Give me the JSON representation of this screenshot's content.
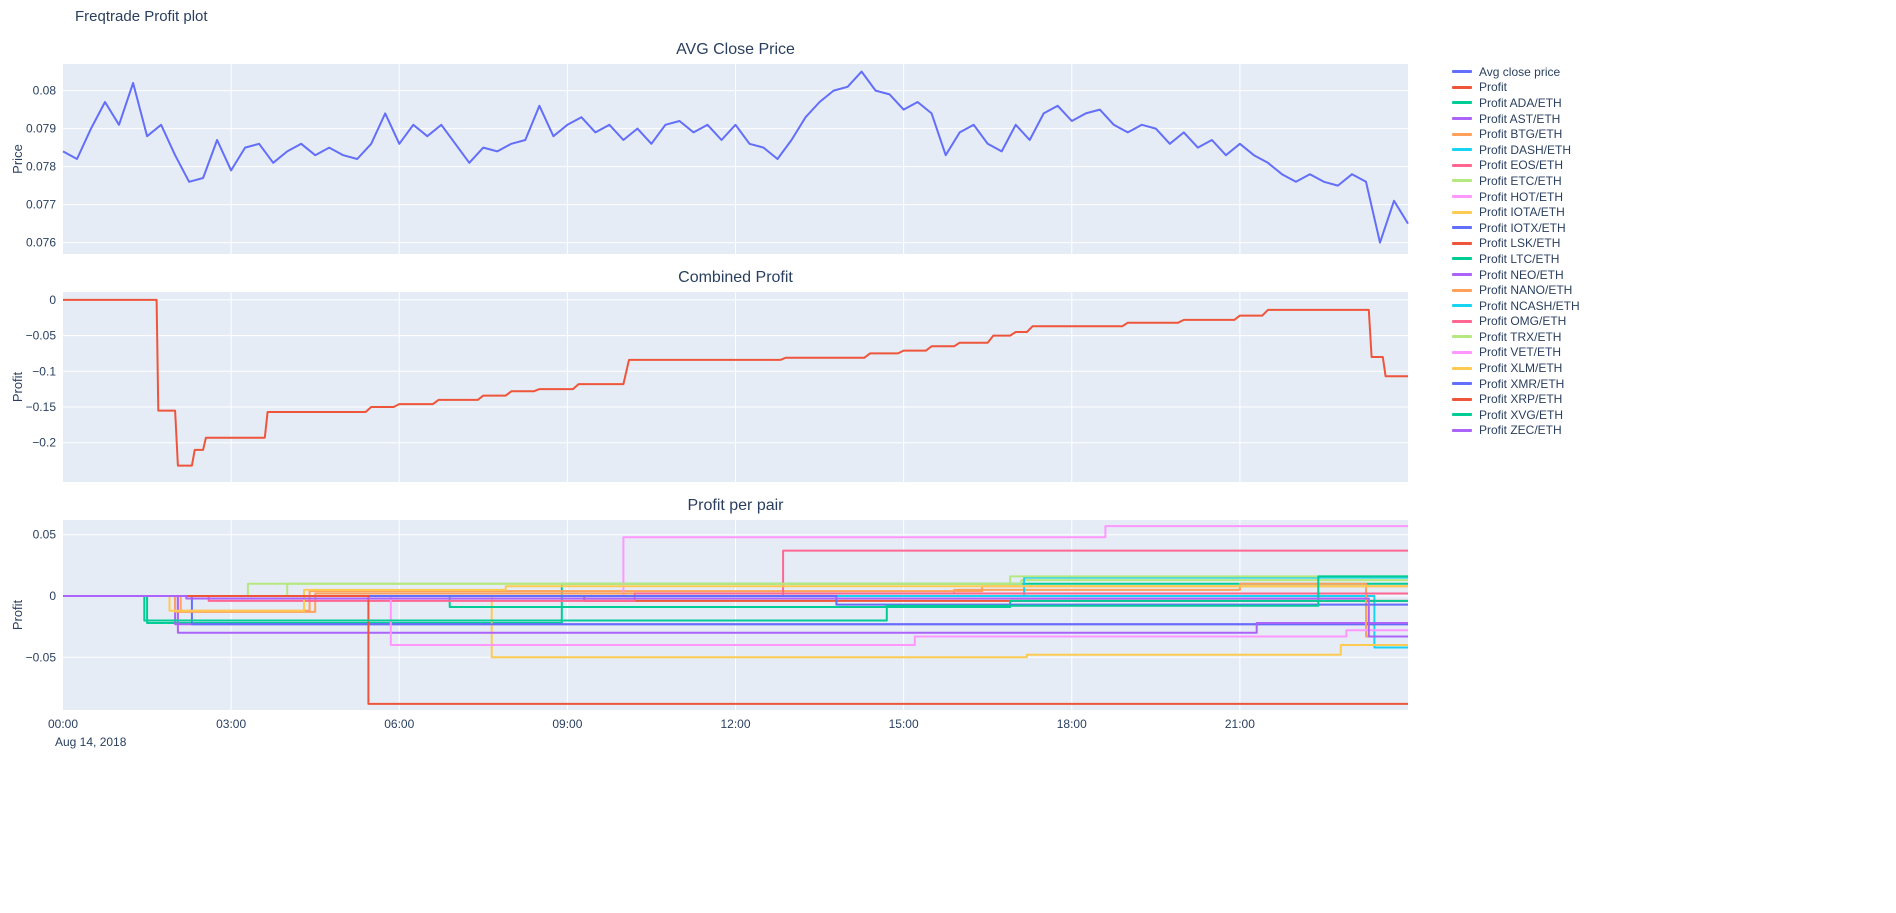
{
  "page": {
    "title": "Freqtrade Profit plot"
  },
  "x_axis": {
    "xlim": [
      0,
      24
    ],
    "tick_hours": [
      0,
      3,
      6,
      9,
      12,
      15,
      18,
      21
    ],
    "tick_labels": [
      "00:00",
      "03:00",
      "06:00",
      "09:00",
      "12:00",
      "15:00",
      "18:00",
      "21:00"
    ],
    "grid_hours": [
      3,
      6,
      9,
      12,
      15,
      18,
      21
    ],
    "date_label": "Aug 14, 2018"
  },
  "legend": {
    "items": [
      {
        "label": "Avg close price",
        "color": "#636efa"
      },
      {
        "label": "Profit",
        "color": "#EF553B"
      },
      {
        "label": "Profit ADA/ETH",
        "color": "#00cc96"
      },
      {
        "label": "Profit AST/ETH",
        "color": "#ab63fa"
      },
      {
        "label": "Profit BTG/ETH",
        "color": "#FFA15A"
      },
      {
        "label": "Profit DASH/ETH",
        "color": "#19d3f3"
      },
      {
        "label": "Profit EOS/ETH",
        "color": "#FF6692"
      },
      {
        "label": "Profit ETC/ETH",
        "color": "#B6E880"
      },
      {
        "label": "Profit HOT/ETH",
        "color": "#FF97FF"
      },
      {
        "label": "Profit IOTA/ETH",
        "color": "#FECB52"
      },
      {
        "label": "Profit IOTX/ETH",
        "color": "#636efa"
      },
      {
        "label": "Profit LSK/ETH",
        "color": "#EF553B"
      },
      {
        "label": "Profit LTC/ETH",
        "color": "#00cc96"
      },
      {
        "label": "Profit NEO/ETH",
        "color": "#ab63fa"
      },
      {
        "label": "Profit NANO/ETH",
        "color": "#FFA15A"
      },
      {
        "label": "Profit NCASH/ETH",
        "color": "#19d3f3"
      },
      {
        "label": "Profit OMG/ETH",
        "color": "#FF6692"
      },
      {
        "label": "Profit TRX/ETH",
        "color": "#B6E880"
      },
      {
        "label": "Profit VET/ETH",
        "color": "#FF97FF"
      },
      {
        "label": "Profit XLM/ETH",
        "color": "#FECB52"
      },
      {
        "label": "Profit XMR/ETH",
        "color": "#636efa"
      },
      {
        "label": "Profit XRP/ETH",
        "color": "#EF553B"
      },
      {
        "label": "Profit XVG/ETH",
        "color": "#00cc96"
      },
      {
        "label": "Profit ZEC/ETH",
        "color": "#ab63fa"
      }
    ]
  },
  "chart_data": [
    {
      "type": "line",
      "title": "AVG Close Price",
      "ylabel": "Price",
      "ylim": [
        0.0757,
        0.0807
      ],
      "ytick_vals": [
        0.08,
        0.079,
        0.078,
        0.077,
        0.076
      ],
      "ytick_labels": [
        "0.08",
        "0.079",
        "0.078",
        "0.077",
        "0.076"
      ],
      "series": [
        {
          "name": "Avg close price",
          "color": "#636efa",
          "x0": 0,
          "dx": 0.25,
          "y": [
            0.0784,
            0.0782,
            0.079,
            0.0797,
            0.0791,
            0.0802,
            0.0788,
            0.0791,
            0.0783,
            0.0776,
            0.0777,
            0.0787,
            0.0779,
            0.0785,
            0.0786,
            0.0781,
            0.0784,
            0.0786,
            0.0783,
            0.0785,
            0.0783,
            0.0782,
            0.0786,
            0.0794,
            0.0786,
            0.0791,
            0.0788,
            0.0791,
            0.0786,
            0.0781,
            0.0785,
            0.0784,
            0.0786,
            0.0787,
            0.0796,
            0.0788,
            0.0791,
            0.0793,
            0.0789,
            0.0791,
            0.0787,
            0.079,
            0.0786,
            0.0791,
            0.0792,
            0.0789,
            0.0791,
            0.0787,
            0.0791,
            0.0786,
            0.0785,
            0.0782,
            0.0787,
            0.0793,
            0.0797,
            0.08,
            0.0801,
            0.0805,
            0.08,
            0.0799,
            0.0795,
            0.0797,
            0.0794,
            0.0783,
            0.0789,
            0.0791,
            0.0786,
            0.0784,
            0.0791,
            0.0787,
            0.0794,
            0.0796,
            0.0792,
            0.0794,
            0.0795,
            0.0791,
            0.0789,
            0.0791,
            0.079,
            0.0786,
            0.0789,
            0.0785,
            0.0787,
            0.0783,
            0.0786,
            0.0783,
            0.0781,
            0.0778,
            0.0776,
            0.0778,
            0.0776,
            0.0775,
            0.0778,
            0.0776,
            0.076,
            0.0771,
            0.0765
          ]
        }
      ]
    },
    {
      "type": "line",
      "title": "Combined Profit",
      "ylabel": "Profit",
      "ylim": [
        -0.255,
        0.011
      ],
      "ytick_vals": [
        0,
        -0.05,
        -0.1,
        -0.15,
        -0.2
      ],
      "ytick_labels": [
        "0",
        "−0.05",
        "−0.1",
        "−0.15",
        "−0.2"
      ],
      "series": [
        {
          "name": "Profit",
          "color": "#EF553B",
          "x": [
            0,
            1.67,
            1.7,
            2.0,
            2.05,
            2.3,
            2.35,
            2.5,
            2.55,
            3.6,
            3.65,
            5.4,
            5.5,
            5.9,
            6.0,
            6.6,
            6.7,
            7.4,
            7.5,
            7.9,
            8.0,
            8.4,
            8.5,
            9.1,
            9.2,
            10.0,
            10.1,
            12.8,
            12.9,
            14.3,
            14.4,
            14.9,
            15.0,
            15.4,
            15.5,
            15.9,
            16.0,
            16.5,
            16.6,
            16.9,
            17.0,
            17.2,
            17.3,
            18.9,
            19.0,
            19.9,
            20.0,
            20.9,
            21.0,
            21.4,
            21.5,
            23.3,
            23.35,
            23.55,
            23.6,
            24
          ],
          "y": [
            0,
            0,
            -0.155,
            -0.155,
            -0.232,
            -0.232,
            -0.21,
            -0.21,
            -0.193,
            -0.193,
            -0.157,
            -0.157,
            -0.15,
            -0.15,
            -0.146,
            -0.146,
            -0.14,
            -0.14,
            -0.134,
            -0.134,
            -0.128,
            -0.128,
            -0.125,
            -0.125,
            -0.118,
            -0.118,
            -0.084,
            -0.084,
            -0.081,
            -0.081,
            -0.075,
            -0.075,
            -0.071,
            -0.071,
            -0.065,
            -0.065,
            -0.06,
            -0.06,
            -0.05,
            -0.05,
            -0.045,
            -0.045,
            -0.037,
            -0.037,
            -0.032,
            -0.032,
            -0.028,
            -0.028,
            -0.022,
            -0.022,
            -0.014,
            -0.014,
            -0.08,
            -0.08,
            -0.107,
            -0.107
          ]
        }
      ]
    },
    {
      "type": "line",
      "title": "Profit per pair",
      "ylabel": "Profit",
      "ylim": [
        -0.093,
        0.062
      ],
      "ytick_vals": [
        0.05,
        0,
        -0.05
      ],
      "ytick_labels": [
        "0.05",
        "0",
        "−0.05"
      ],
      "series": [
        {
          "name": "Profit ADA/ETH",
          "color": "#00cc96",
          "x": [
            0,
            1.5,
            1.5,
            8.9,
            8.9,
            24
          ],
          "y": [
            0,
            0,
            -0.022,
            -0.022,
            0.01,
            0.01
          ]
        },
        {
          "name": "Profit AST/ETH",
          "color": "#ab63fa",
          "x": [
            0,
            2.0,
            2.0,
            24
          ],
          "y": [
            0,
            0,
            -0.023,
            -0.023
          ]
        },
        {
          "name": "Profit BTG/ETH",
          "color": "#FFA15A",
          "x": [
            0,
            2.1,
            2.1,
            4.4,
            4.4,
            16.4,
            16.4,
            24
          ],
          "y": [
            0,
            0,
            -0.012,
            -0.012,
            0.004,
            0.004,
            0.008,
            0.008
          ]
        },
        {
          "name": "Profit DASH/ETH",
          "color": "#19d3f3",
          "x": [
            0,
            23.4,
            23.4,
            24
          ],
          "y": [
            0,
            0,
            -0.042,
            -0.042
          ]
        },
        {
          "name": "Profit EOS/ETH",
          "color": "#FF6692",
          "x": [
            0,
            12.85,
            12.85,
            24
          ],
          "y": [
            0,
            0,
            0.037,
            0.037
          ]
        },
        {
          "name": "Profit ETC/ETH",
          "color": "#B6E880",
          "x": [
            0,
            4.0,
            4.0,
            17.1,
            17.1,
            24
          ],
          "y": [
            0,
            0,
            0.01,
            0.01,
            0.013,
            0.013
          ]
        },
        {
          "name": "Profit HOT/ETH",
          "color": "#FF97FF",
          "x": [
            0,
            10.0,
            10.0,
            18.6,
            18.6,
            24
          ],
          "y": [
            0,
            0,
            0.048,
            0.048,
            0.057,
            0.057
          ]
        },
        {
          "name": "Profit IOTA/ETH",
          "color": "#FECB52",
          "x": [
            0,
            7.65,
            7.65,
            17.2,
            17.2,
            22.8,
            22.8,
            24
          ],
          "y": [
            0,
            0,
            -0.05,
            -0.05,
            -0.048,
            -0.048,
            -0.04,
            -0.04
          ]
        },
        {
          "name": "Profit IOTX/ETH",
          "color": "#636efa",
          "x": [
            0,
            2.3,
            2.3,
            24
          ],
          "y": [
            0,
            0,
            -0.023,
            -0.023
          ]
        },
        {
          "name": "Profit LSK/ETH",
          "color": "#EF553B",
          "x": [
            0,
            9.3,
            9.3,
            24
          ],
          "y": [
            0,
            0,
            -0.004,
            -0.004
          ]
        },
        {
          "name": "Profit LTC/ETH",
          "color": "#00cc96",
          "x": [
            0,
            6.9,
            6.9,
            16.9,
            16.9,
            24
          ],
          "y": [
            0,
            0,
            -0.009,
            -0.009,
            -0.004,
            -0.004
          ]
        },
        {
          "name": "Profit NEO/ETH",
          "color": "#ab63fa",
          "x": [
            0,
            2.05,
            2.05,
            21.3,
            21.3,
            24
          ],
          "y": [
            0,
            0,
            -0.03,
            -0.03,
            -0.022,
            -0.022
          ]
        },
        {
          "name": "Profit NANO/ETH",
          "color": "#FFA15A",
          "x": [
            0,
            2.0,
            2.0,
            4.5,
            4.5,
            15.9,
            15.9,
            21.0,
            21.0,
            23.25,
            23.25,
            24
          ],
          "y": [
            0,
            0,
            -0.013,
            -0.013,
            0.002,
            0.002,
            0.005,
            0.005,
            0.01,
            0.01,
            -0.033,
            -0.033
          ]
        },
        {
          "name": "Profit NCASH/ETH",
          "color": "#19d3f3",
          "x": [
            0,
            17.15,
            17.15,
            24
          ],
          "y": [
            0,
            0,
            0.015,
            0.015
          ]
        },
        {
          "name": "Profit OMG/ETH",
          "color": "#FF6692",
          "x": [
            0,
            2.6,
            2.6,
            10.2,
            10.2,
            24
          ],
          "y": [
            0,
            0,
            -0.004,
            -0.004,
            0.002,
            0.002
          ]
        },
        {
          "name": "Profit TRX/ETH",
          "color": "#B6E880",
          "x": [
            0,
            3.3,
            3.3,
            16.9,
            16.9,
            24
          ],
          "y": [
            0,
            0,
            0.01,
            0.01,
            0.016,
            0.016
          ]
        },
        {
          "name": "Profit VET/ETH",
          "color": "#FF97FF",
          "x": [
            0,
            5.85,
            5.85,
            15.2,
            15.2,
            22.9,
            22.9,
            24
          ],
          "y": [
            0,
            0,
            -0.04,
            -0.04,
            -0.033,
            -0.033,
            -0.028,
            -0.028
          ]
        },
        {
          "name": "Profit XLM/ETH",
          "color": "#FECB52",
          "x": [
            0,
            1.9,
            1.9,
            4.3,
            4.3,
            7.9,
            7.9,
            24
          ],
          "y": [
            0,
            0,
            -0.012,
            -0.012,
            0.005,
            0.005,
            0.008,
            0.008
          ]
        },
        {
          "name": "Profit XMR/ETH",
          "color": "#636efa",
          "x": [
            0,
            13.8,
            13.8,
            24
          ],
          "y": [
            0,
            0,
            -0.007,
            -0.007
          ]
        },
        {
          "name": "Profit XRP/ETH",
          "color": "#EF553B",
          "x": [
            0,
            5.45,
            5.45,
            24
          ],
          "y": [
            0,
            0,
            -0.088,
            -0.088
          ]
        },
        {
          "name": "Profit XVG/ETH",
          "color": "#00cc96",
          "x": [
            0,
            1.45,
            1.45,
            14.7,
            14.7,
            22.4,
            22.4,
            24
          ],
          "y": [
            0,
            0,
            -0.02,
            -0.02,
            -0.008,
            -0.008,
            0.016,
            0.016
          ]
        },
        {
          "name": "Profit ZEC/ETH",
          "color": "#ab63fa",
          "x": [
            0,
            2.2,
            2.2,
            23.3,
            23.3,
            24
          ],
          "y": [
            0,
            0,
            -0.002,
            -0.002,
            -0.033,
            -0.033
          ]
        }
      ]
    }
  ],
  "style": {
    "plot_bg": "#E5ECF6",
    "grid_color": "#ffffff",
    "text_color": "#2a3f5f"
  }
}
